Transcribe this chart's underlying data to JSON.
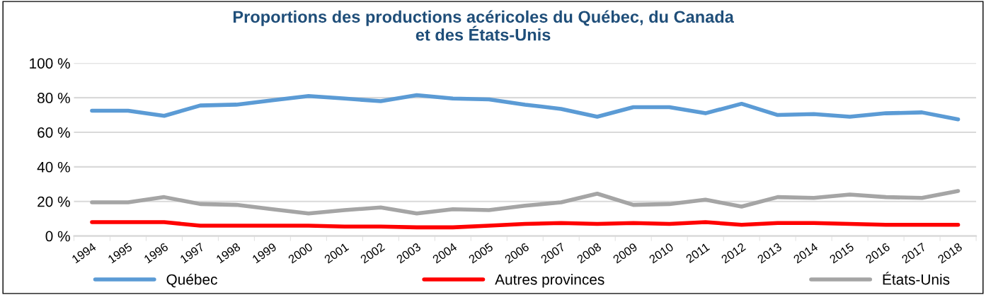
{
  "chart_data": {
    "type": "line",
    "title": "Proportions des productions acéricoles du Québec, du Canada\net des États-Unis",
    "categories": [
      "1994",
      "1995",
      "1996",
      "1997",
      "1998",
      "1999",
      "2000",
      "2001",
      "2002",
      "2003",
      "2004",
      "2005",
      "2006",
      "2007",
      "2008",
      "2009",
      "2010",
      "2011",
      "2012",
      "2013",
      "2014",
      "2015",
      "2016",
      "2017",
      "2018"
    ],
    "series": [
      {
        "name": "Québec",
        "color": "#5b9bd5",
        "values": [
          72.5,
          72.5,
          69.5,
          75.5,
          76,
          78.5,
          81,
          79.5,
          78,
          81.5,
          79.5,
          79,
          76,
          73.5,
          69,
          74.5,
          74.5,
          71,
          76.5,
          70,
          70.5,
          69,
          71,
          71.5,
          67.5
        ]
      },
      {
        "name": "Autres provinces",
        "color": "#ff0000",
        "values": [
          8,
          8,
          8,
          6,
          6,
          6,
          6,
          5.5,
          5.5,
          5,
          5,
          6,
          7,
          7.5,
          7,
          7.5,
          7,
          8,
          6.5,
          7.5,
          7.5,
          7,
          6.5,
          6.5,
          6.5
        ]
      },
      {
        "name": "États-Unis",
        "color": "#a5a5a5",
        "values": [
          19.5,
          19.5,
          22.5,
          18.5,
          18,
          15.5,
          13,
          15,
          16.5,
          13,
          15.5,
          15,
          17.5,
          19.5,
          24.5,
          18,
          18.5,
          21,
          17,
          22.5,
          22,
          24,
          22.5,
          22,
          26
        ]
      }
    ],
    "ylim": [
      0,
      100
    ],
    "yticks": [
      {
        "value": 0,
        "label": "0 %"
      },
      {
        "value": 20,
        "label": "20 %"
      },
      {
        "value": 40,
        "label": "40 %"
      },
      {
        "value": 60,
        "label": "60 %"
      },
      {
        "value": 80,
        "label": "80 %"
      },
      {
        "value": 100,
        "label": "100 %"
      }
    ],
    "grid": "y",
    "legend": "bottom",
    "line_style": "solid",
    "marker": "none"
  }
}
